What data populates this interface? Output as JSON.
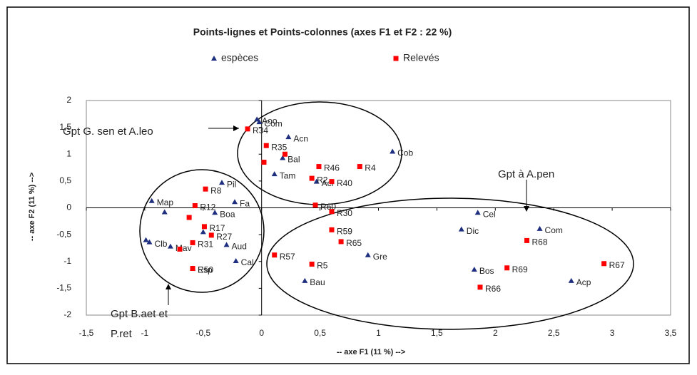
{
  "chart_data": {
    "type": "scatter",
    "title": "Points-lignes et Points-colonnes (axes F1 et F2 : 22 %)",
    "x_label": "-- axe F1 (11 %) -->",
    "y_label": "-- axe F2 (11 %) -->",
    "annotations": [
      "Gpt G. sen et A.leo",
      "Gpt à A.pen",
      "Gpt B.aet et",
      "P.ret"
    ],
    "xlim": [
      -1.5,
      3.5
    ],
    "ylim": [
      -2,
      2
    ],
    "xticks": [
      {
        "value": -1.5,
        "label": "-1,5"
      },
      -1,
      {
        "value": -0.5,
        "label": "-0,5"
      },
      0,
      {
        "value": 0.5,
        "label": "0,5"
      },
      1,
      {
        "value": 1.5,
        "label": "1,5"
      },
      2,
      {
        "value": 2.5,
        "label": "2,5"
      },
      3,
      {
        "value": 3.5,
        "label": "3,5"
      }
    ],
    "yticks": [
      -2,
      {
        "value": -1.5,
        "label": "-1,5"
      },
      -1,
      {
        "value": -0.5,
        "label": "-0,5"
      },
      0,
      {
        "value": 0.5,
        "label": "0,5"
      },
      1,
      {
        "value": 1.5,
        "label": "1,5"
      },
      2
    ],
    "grid": false,
    "series": [
      {
        "name": "espèces",
        "color": "#1f2f7f",
        "marker": "triangle",
        "x": [
          -0.04,
          -0.02,
          0.23,
          1.12,
          0.18,
          0.11,
          0.47,
          -0.34,
          -0.23,
          1.85,
          1.71,
          2.38,
          0.91,
          1.82,
          2.65,
          0.37,
          -0.22,
          -0.3,
          -0.94,
          -0.4,
          -0.78,
          -0.96,
          -0.59,
          -0.99,
          -0.83,
          -0.5
        ],
        "y": [
          1.65,
          1.6,
          1.32,
          1.05,
          0.93,
          0.63,
          0.49,
          0.47,
          0.11,
          -0.09,
          -0.4,
          -0.39,
          -0.88,
          -1.15,
          -1.36,
          -1.36,
          -0.99,
          -0.69,
          0.13,
          -0.09,
          -0.72,
          -0.64,
          -1.13,
          -0.6,
          -0.08,
          -0.45
        ],
        "labels": [
          "Aoo",
          "Com",
          "Acn",
          "Cob",
          "Bal",
          "Tam",
          "Acr",
          "Pil",
          "Fa",
          "Cel",
          "Dic",
          "Com",
          "Gre",
          "Bos",
          "Acp",
          "Bau",
          "Cal",
          "Aud",
          "Map",
          "Boa",
          "Mav",
          "Clb",
          "Esp",
          null,
          null,
          null
        ]
      },
      {
        "name": "Relevés",
        "color": "#ff0000",
        "marker": "square",
        "x": [
          -0.12,
          0.04,
          0.49,
          0.84,
          0.6,
          0.43,
          -0.48,
          -0.57,
          0.46,
          0.6,
          0.6,
          0.68,
          0.11,
          0.43,
          2.27,
          2.93,
          2.1,
          1.87,
          -0.49,
          -0.43,
          -0.59,
          -0.59,
          0.02,
          0.2,
          -0.7,
          -0.62
        ],
        "y": [
          1.47,
          1.16,
          0.77,
          0.77,
          0.49,
          0.55,
          0.35,
          0.04,
          0.05,
          -0.07,
          -0.41,
          -0.63,
          -0.88,
          -1.05,
          -0.61,
          -1.04,
          -1.12,
          -1.48,
          -0.35,
          -0.51,
          -1.13,
          -0.65,
          0.85,
          1.0,
          -0.77,
          -0.18
        ],
        "labels": [
          "R34",
          "R35",
          "R46",
          "R4",
          "R40",
          "R2",
          "R8",
          "R12",
          "R60",
          "R30",
          "R59",
          "R65",
          "R57",
          "R5",
          "R68",
          "R67",
          "R69",
          "R66",
          "R17",
          "R27",
          "R50",
          "R31",
          null,
          null,
          null,
          null
        ]
      }
    ]
  }
}
